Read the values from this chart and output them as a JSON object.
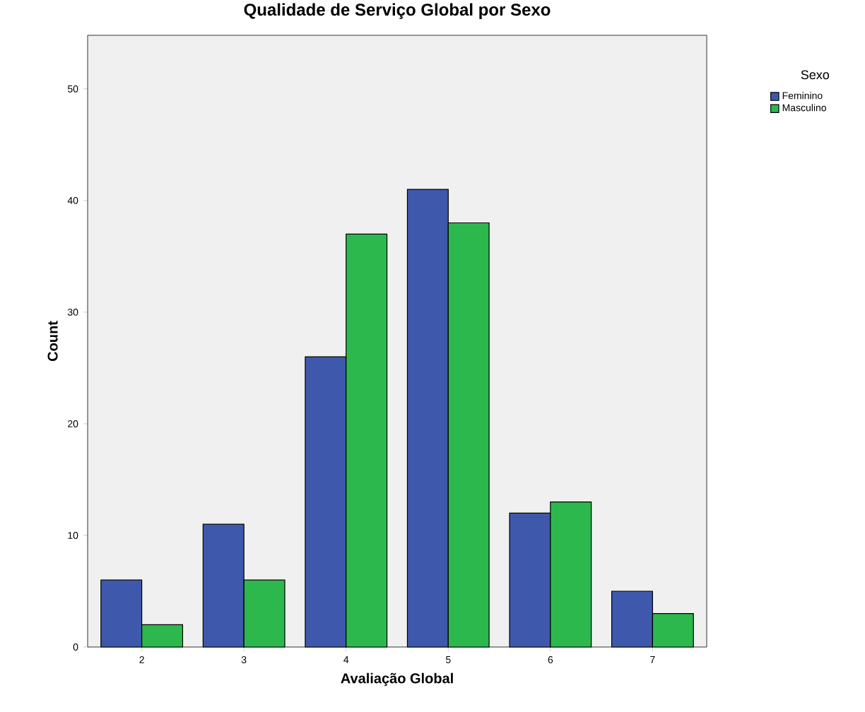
{
  "chart_data": {
    "type": "bar",
    "title": "Qualidade de Serviço Global por Sexo",
    "xlabel": "Avaliação Global",
    "ylabel": "Count",
    "legend_title": "Sexo",
    "categories": [
      "2",
      "3",
      "4",
      "5",
      "6",
      "7"
    ],
    "series": [
      {
        "name": "Feminino",
        "color": "#3e58ac",
        "values": [
          6,
          11,
          26,
          41,
          12,
          5
        ]
      },
      {
        "name": "Masculino",
        "color": "#2db84d",
        "values": [
          2,
          6,
          37,
          38,
          13,
          3
        ]
      }
    ],
    "ylim": [
      0,
      54.8
    ],
    "yticks": [
      0,
      10,
      20,
      30,
      40,
      50
    ],
    "legend": "top right"
  }
}
